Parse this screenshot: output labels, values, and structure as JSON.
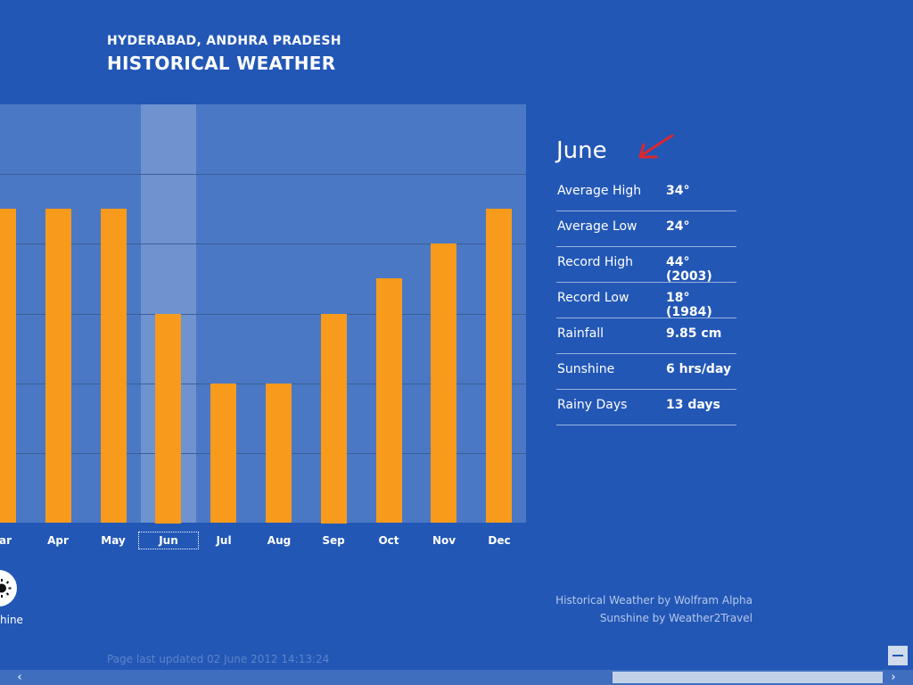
{
  "header": {
    "location": "HYDERABAD, ANDHRA PRADESH",
    "title": "HISTORICAL WEATHER"
  },
  "chart_data": {
    "type": "bar",
    "categories": [
      "Mar",
      "Apr",
      "May",
      "Jun",
      "Jul",
      "Aug",
      "Sep",
      "Oct",
      "Nov",
      "Dec"
    ],
    "category_labels": [
      "lar",
      "Apr",
      "May",
      "Jun",
      "Jul",
      "Aug",
      "Sep",
      "Oct",
      "Nov",
      "Dec"
    ],
    "series": [
      {
        "values": [
          9,
          9,
          9,
          6,
          4,
          4,
          6,
          7,
          8,
          9
        ],
        "color": "#f89a1c"
      }
    ],
    "ylim": [
      0,
      12
    ],
    "grid": true,
    "selected_category": "Jun"
  },
  "sunshine_toggle": {
    "label": "hine",
    "icon": "sun-icon"
  },
  "details": {
    "month": "June",
    "rows": [
      {
        "label": "Average High",
        "value": "34°"
      },
      {
        "label": "Average Low",
        "value": "24°"
      },
      {
        "label": "Record High",
        "value": "44° (2003)"
      },
      {
        "label": "Record Low",
        "value": "18° (1984)"
      },
      {
        "label": "Rainfall",
        "value": "9.85 cm"
      },
      {
        "label": "Sunshine",
        "value": "6 hrs/day"
      },
      {
        "label": "Rainy Days",
        "value": "13 days"
      }
    ]
  },
  "credits": {
    "line1": "Historical Weather by Wolfram Alpha",
    "line2": "Sunshine by Weather2Travel"
  },
  "footer": {
    "updated": "Page last updated 02 June 2012 14:13:24"
  },
  "scrollbar": {
    "left_arrow": "‹",
    "right_arrow": "›"
  },
  "colors": {
    "background": "#2257b6",
    "bar": "#f89a1c",
    "annotation": "#e0262b"
  }
}
